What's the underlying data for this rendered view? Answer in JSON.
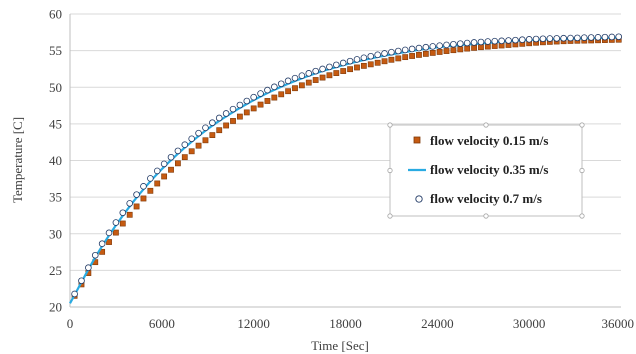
{
  "chart_data": {
    "type": "line",
    "title": "",
    "xlabel": "Time [Sec]",
    "ylabel": "Temperature [C]",
    "xlim": [
      0,
      36000
    ],
    "ylim": [
      20,
      60
    ],
    "x_ticks": [
      "0",
      "6000",
      "12000",
      "18000",
      "24000",
      "30000",
      "36000"
    ],
    "y_ticks": [
      "20",
      "25",
      "30",
      "35",
      "40",
      "45",
      "50",
      "55",
      "60"
    ],
    "grid": "horizontal",
    "legend_position": "center-right",
    "x": [
      0,
      1800,
      3600,
      5400,
      7200,
      9000,
      10800,
      12600,
      14400,
      16200,
      18000,
      19800,
      21600,
      23400,
      25200,
      27000,
      28800,
      30600,
      32400,
      34200,
      36000
    ],
    "series": [
      {
        "name": "flow velocity 0.15 m/s",
        "style": "square-markers",
        "color": "#C55A11",
        "values": [
          20.5,
          26.6,
          31.8,
          36.2,
          39.9,
          43.0,
          45.6,
          47.8,
          49.6,
          51.1,
          52.3,
          53.2,
          54.0,
          54.6,
          55.1,
          55.5,
          55.8,
          56.1,
          56.3,
          56.4,
          56.5
        ]
      },
      {
        "name": "flow velocity 0.35 m/s",
        "style": "line",
        "color": "#29ABE2",
        "values": [
          20.5,
          27.3,
          32.9,
          37.5,
          41.2,
          44.3,
          46.8,
          48.9,
          50.6,
          52.0,
          53.1,
          54.0,
          54.7,
          55.3,
          55.7,
          56.0,
          56.3,
          56.5,
          56.6,
          56.7,
          56.8
        ]
      },
      {
        "name": "flow velocity 0.7 m/s",
        "style": "circle-markers",
        "color": "#1F3864",
        "values": [
          20.6,
          27.6,
          33.3,
          37.9,
          41.6,
          44.7,
          47.2,
          49.3,
          51.0,
          52.3,
          53.4,
          54.3,
          55.0,
          55.5,
          55.9,
          56.2,
          56.4,
          56.6,
          56.7,
          56.8,
          56.9
        ]
      }
    ]
  }
}
